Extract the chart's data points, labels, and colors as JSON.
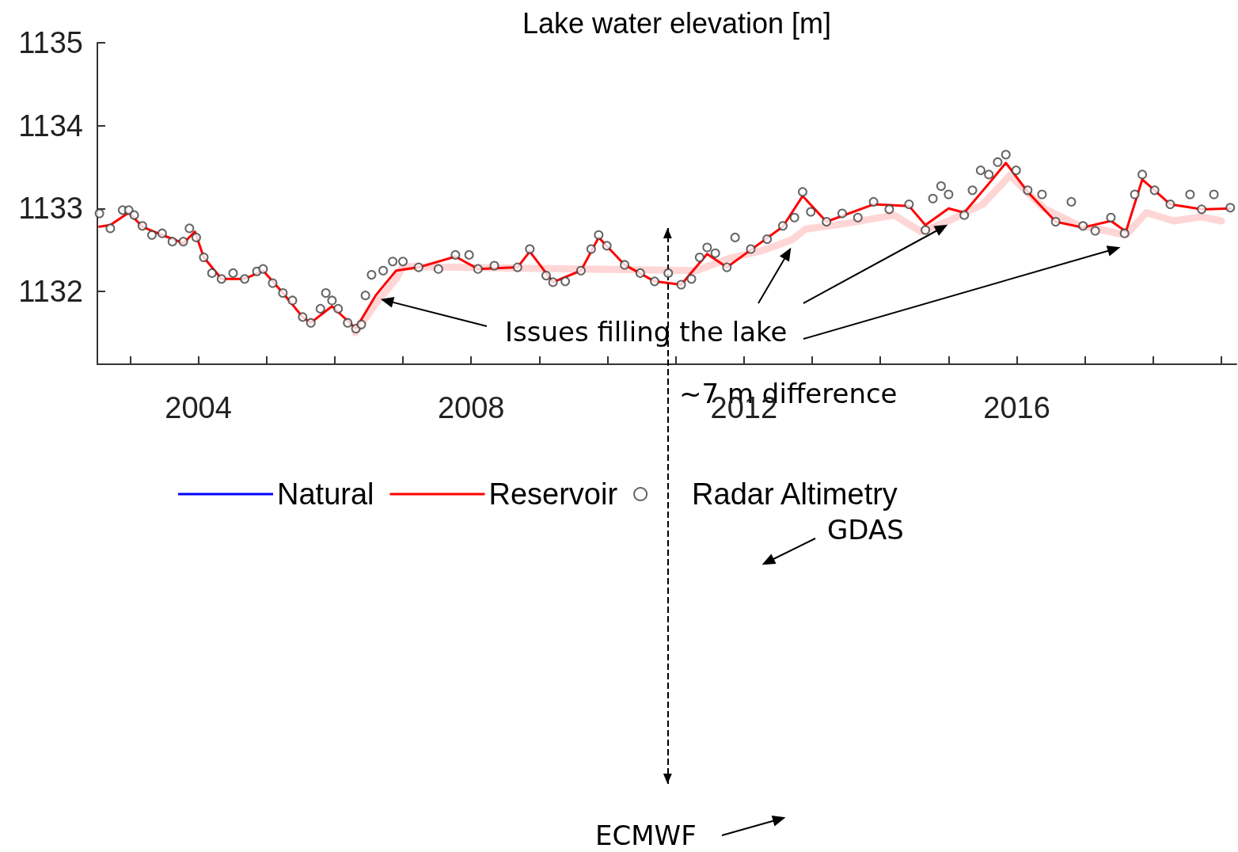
{
  "chart_data": {
    "type": "line",
    "title": "Lake water elevation [m]",
    "xlim": [
      2002.52,
      2019.22
    ],
    "ylim": [
      1131.12,
      1135
    ],
    "xticks": [
      {
        "value": 2003,
        "label": null
      },
      2004,
      {
        "value": 2005,
        "label": null
      },
      {
        "value": 2006,
        "label": null
      },
      {
        "value": 2007,
        "label": null
      },
      2008,
      {
        "value": 2009,
        "label": null
      },
      {
        "value": 2010,
        "label": null
      },
      {
        "value": 2011,
        "label": null
      },
      2012,
      {
        "value": 2013,
        "label": null
      },
      {
        "value": 2014,
        "label": null
      },
      {
        "value": 2015,
        "label": null
      },
      2016,
      {
        "value": 2017,
        "label": null
      },
      {
        "value": 2018,
        "label": null
      },
      {
        "value": 2019,
        "label": null
      }
    ],
    "yticks": [
      1132,
      1133,
      1134,
      1135
    ],
    "legend": "bottom",
    "marker": "none",
    "line_style": "solid",
    "ref_lines": [
      {
        "axis": "x",
        "value": 2010.88,
        "color": "#000000",
        "line_style": "dashed"
      }
    ],
    "annotations": [
      {
        "text": "Issues filling the lake",
        "x": 2006.7,
        "y": 1131.9
      },
      "~7 m difference",
      "GDAS",
      "ECMWF"
    ],
    "series": [
      {
        "color": "#ffd6d6",
        "x": [
          2006.3,
          2006.6,
          2006.9,
          2007.0,
          2011.3,
          2011.8,
          2012.3,
          2012.7,
          2012.9,
          2013.5,
          2014.2,
          2014.6,
          2015.0,
          2015.5,
          2015.9,
          2016.4,
          2016.9,
          2017.6,
          2017.9,
          2018.3,
          2018.7,
          2019.0
        ],
        "values": [
          1131.5,
          1131.85,
          1132.15,
          1132.3,
          1132.25,
          1132.4,
          1132.5,
          1132.62,
          1132.75,
          1132.82,
          1132.92,
          1132.72,
          1132.85,
          1133.05,
          1133.4,
          1133.0,
          1132.8,
          1132.68,
          1132.95,
          1132.85,
          1132.9,
          1132.85
        ]
      },
      {
        "type": "line",
        "name": "Natural",
        "color": "#0000ff"
      },
      {
        "name": "Reservoir",
        "color": "#ff0000",
        "x": [
          2002.55,
          2002.71,
          2002.98,
          2003.18,
          2003.47,
          2003.78,
          2003.95,
          2004.08,
          2004.34,
          2004.68,
          2004.95,
          2005.24,
          2005.53,
          2005.65,
          2005.96,
          2006.31,
          2006.6,
          2006.9,
          2007.23,
          2007.77,
          2008.1,
          2008.68,
          2008.86,
          2009.2,
          2009.61,
          2009.87,
          2010.25,
          2010.69,
          2011.08,
          2011.46,
          2011.75,
          2012.1,
          2012.57,
          2012.86,
          2013.21,
          2013.9,
          2014.42,
          2014.66,
          2015.0,
          2015.23,
          2015.59,
          2015.84,
          2016.16,
          2016.57,
          2016.97,
          2017.38,
          2017.6,
          2017.84,
          2018.25,
          2018.71,
          2019.13
        ],
        "values": [
          1132.78,
          1132.8,
          1132.95,
          1132.78,
          1132.68,
          1132.58,
          1132.72,
          1132.41,
          1132.15,
          1132.15,
          1132.25,
          1131.98,
          1131.69,
          1131.62,
          1131.82,
          1131.55,
          1131.95,
          1132.25,
          1132.29,
          1132.42,
          1132.27,
          1132.29,
          1132.48,
          1132.11,
          1132.25,
          1132.65,
          1132.32,
          1132.12,
          1132.08,
          1132.45,
          1132.29,
          1132.5,
          1132.78,
          1133.15,
          1132.84,
          1133.05,
          1133.03,
          1132.8,
          1133.0,
          1132.95,
          1133.3,
          1133.55,
          1133.2,
          1132.84,
          1132.77,
          1132.85,
          1132.72,
          1133.35,
          1133.05,
          1132.99,
          1133.0
        ]
      },
      {
        "type": "scatter",
        "name": "Radar Altimetry",
        "color": "#404040",
        "marker": "circle",
        "x": [
          2002.55,
          2002.71,
          2002.89,
          2002.98,
          2003.06,
          2003.18,
          2003.32,
          2003.47,
          2003.62,
          2003.78,
          2003.87,
          2003.97,
          2004.08,
          2004.2,
          2004.34,
          2004.51,
          2004.68,
          2004.86,
          2004.95,
          2005.09,
          2005.24,
          2005.38,
          2005.53,
          2005.65,
          2005.79,
          2005.87,
          2005.96,
          2006.05,
          2006.19,
          2006.31,
          2006.39,
          2006.45,
          2006.54,
          2006.71,
          2006.85,
          2007.0,
          2007.23,
          2007.52,
          2007.77,
          2007.97,
          2008.1,
          2008.34,
          2008.68,
          2008.86,
          2009.1,
          2009.2,
          2009.38,
          2009.61,
          2009.76,
          2009.87,
          2009.99,
          2010.25,
          2010.48,
          2010.69,
          2010.89,
          2011.08,
          2011.23,
          2011.35,
          2011.46,
          2011.58,
          2011.75,
          2011.87,
          2012.1,
          2012.34,
          2012.57,
          2012.74,
          2012.86,
          2012.98,
          2013.21,
          2013.44,
          2013.67,
          2013.9,
          2014.13,
          2014.42,
          2014.66,
          2014.77,
          2014.89,
          2015.0,
          2015.23,
          2015.35,
          2015.47,
          2015.59,
          2015.72,
          2015.84,
          2015.99,
          2016.16,
          2016.37,
          2016.57,
          2016.8,
          2016.97,
          2017.15,
          2017.38,
          2017.58,
          2017.73,
          2017.84,
          2018.02,
          2018.25,
          2018.54,
          2018.71,
          2018.89,
          2019.13
        ],
        "values": [
          1132.94,
          1132.76,
          1132.98,
          1132.98,
          1132.92,
          1132.79,
          1132.68,
          1132.7,
          1132.6,
          1132.6,
          1132.76,
          1132.65,
          1132.41,
          1132.22,
          1132.15,
          1132.22,
          1132.15,
          1132.24,
          1132.27,
          1132.1,
          1131.98,
          1131.89,
          1131.69,
          1131.62,
          1131.79,
          1131.98,
          1131.89,
          1131.79,
          1131.62,
          1131.55,
          1131.6,
          1131.95,
          1132.2,
          1132.25,
          1132.36,
          1132.36,
          1132.29,
          1132.27,
          1132.44,
          1132.44,
          1132.27,
          1132.31,
          1132.29,
          1132.51,
          1132.19,
          1132.11,
          1132.12,
          1132.25,
          1132.51,
          1132.68,
          1132.55,
          1132.32,
          1132.22,
          1132.12,
          1132.22,
          1132.08,
          1132.15,
          1132.41,
          1132.53,
          1132.46,
          1132.29,
          1132.65,
          1132.51,
          1132.63,
          1132.79,
          1132.89,
          1133.2,
          1132.96,
          1132.84,
          1132.94,
          1132.89,
          1133.08,
          1132.99,
          1133.05,
          1132.74,
          1133.12,
          1133.27,
          1133.17,
          1132.92,
          1133.22,
          1133.46,
          1133.41,
          1133.56,
          1133.65,
          1133.46,
          1133.22,
          1133.17,
          1132.84,
          1133.08,
          1132.79,
          1132.73,
          1132.89,
          1132.7,
          1133.17,
          1133.41,
          1133.22,
          1133.05,
          1133.17,
          1132.99,
          1133.17,
          1133.01
        ]
      }
    ]
  }
}
